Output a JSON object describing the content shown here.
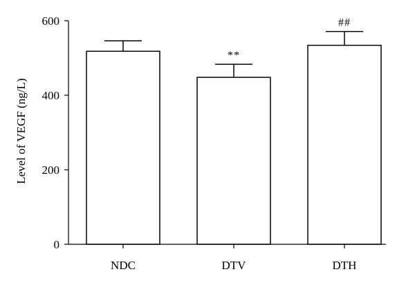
{
  "chart_data": {
    "type": "bar",
    "title": "",
    "xlabel": "",
    "ylabel": "Level of VEGF (ng/L)",
    "ylim": [
      0,
      600
    ],
    "yticks": [
      0,
      200,
      400,
      600
    ],
    "categories": [
      "NDC",
      "DTV",
      "DTH"
    ],
    "values": [
      518,
      448,
      534
    ],
    "errors": [
      28,
      35,
      37
    ],
    "annotations": [
      "",
      "**",
      "##"
    ],
    "grid": false,
    "legend": "none",
    "colors": {
      "bar_fill": "#ffffff",
      "bar_stroke": "#000000"
    }
  }
}
